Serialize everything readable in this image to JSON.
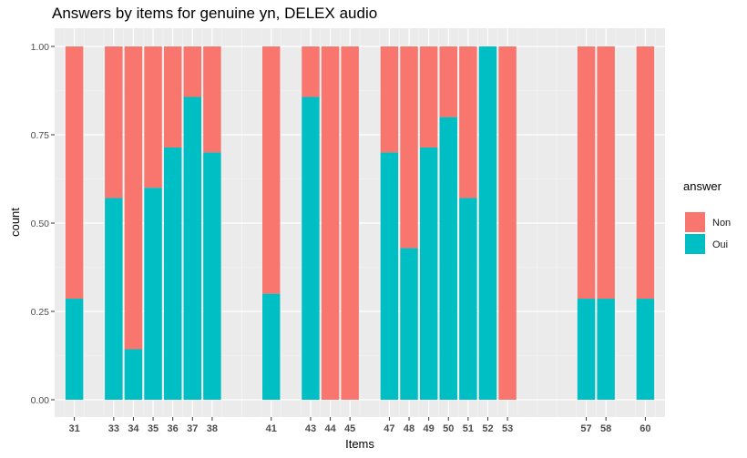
{
  "chart_data": {
    "type": "bar",
    "stacked": true,
    "title": "Answers by items for genuine yn, DELEX audio",
    "xlabel": "Items",
    "ylabel": "count",
    "ylim": [
      0,
      1
    ],
    "yticks": [
      "0.00",
      "0.25",
      "0.50",
      "0.75",
      "1.00"
    ],
    "x_domain": [
      30,
      61
    ],
    "grid": true,
    "legend": {
      "title": "answer",
      "position": "right",
      "entries": [
        {
          "name": "Non",
          "color": "#F8766D"
        },
        {
          "name": "Oui",
          "color": "#00BFC4"
        }
      ]
    },
    "categories": [
      "31",
      "33",
      "34",
      "35",
      "36",
      "37",
      "38",
      "41",
      "43",
      "44",
      "45",
      "47",
      "48",
      "49",
      "50",
      "51",
      "52",
      "53",
      "57",
      "58",
      "60"
    ],
    "series": [
      {
        "name": "Oui",
        "color": "#00BFC4",
        "values": [
          0.286,
          0.571,
          0.143,
          0.6,
          0.714,
          0.857,
          0.7,
          0.3,
          0.857,
          0,
          0,
          0.7,
          0.429,
          0.714,
          0.8,
          0.571,
          1.0,
          0,
          0.286,
          0.286,
          0.286
        ]
      },
      {
        "name": "Non",
        "color": "#F8766D",
        "values": [
          0.714,
          0.429,
          0.857,
          0.4,
          0.286,
          0.143,
          0.3,
          0.7,
          0.143,
          1.0,
          1.0,
          0.3,
          0.571,
          0.286,
          0.2,
          0.429,
          0,
          1.0,
          0.714,
          0.714,
          0.714
        ]
      }
    ]
  }
}
